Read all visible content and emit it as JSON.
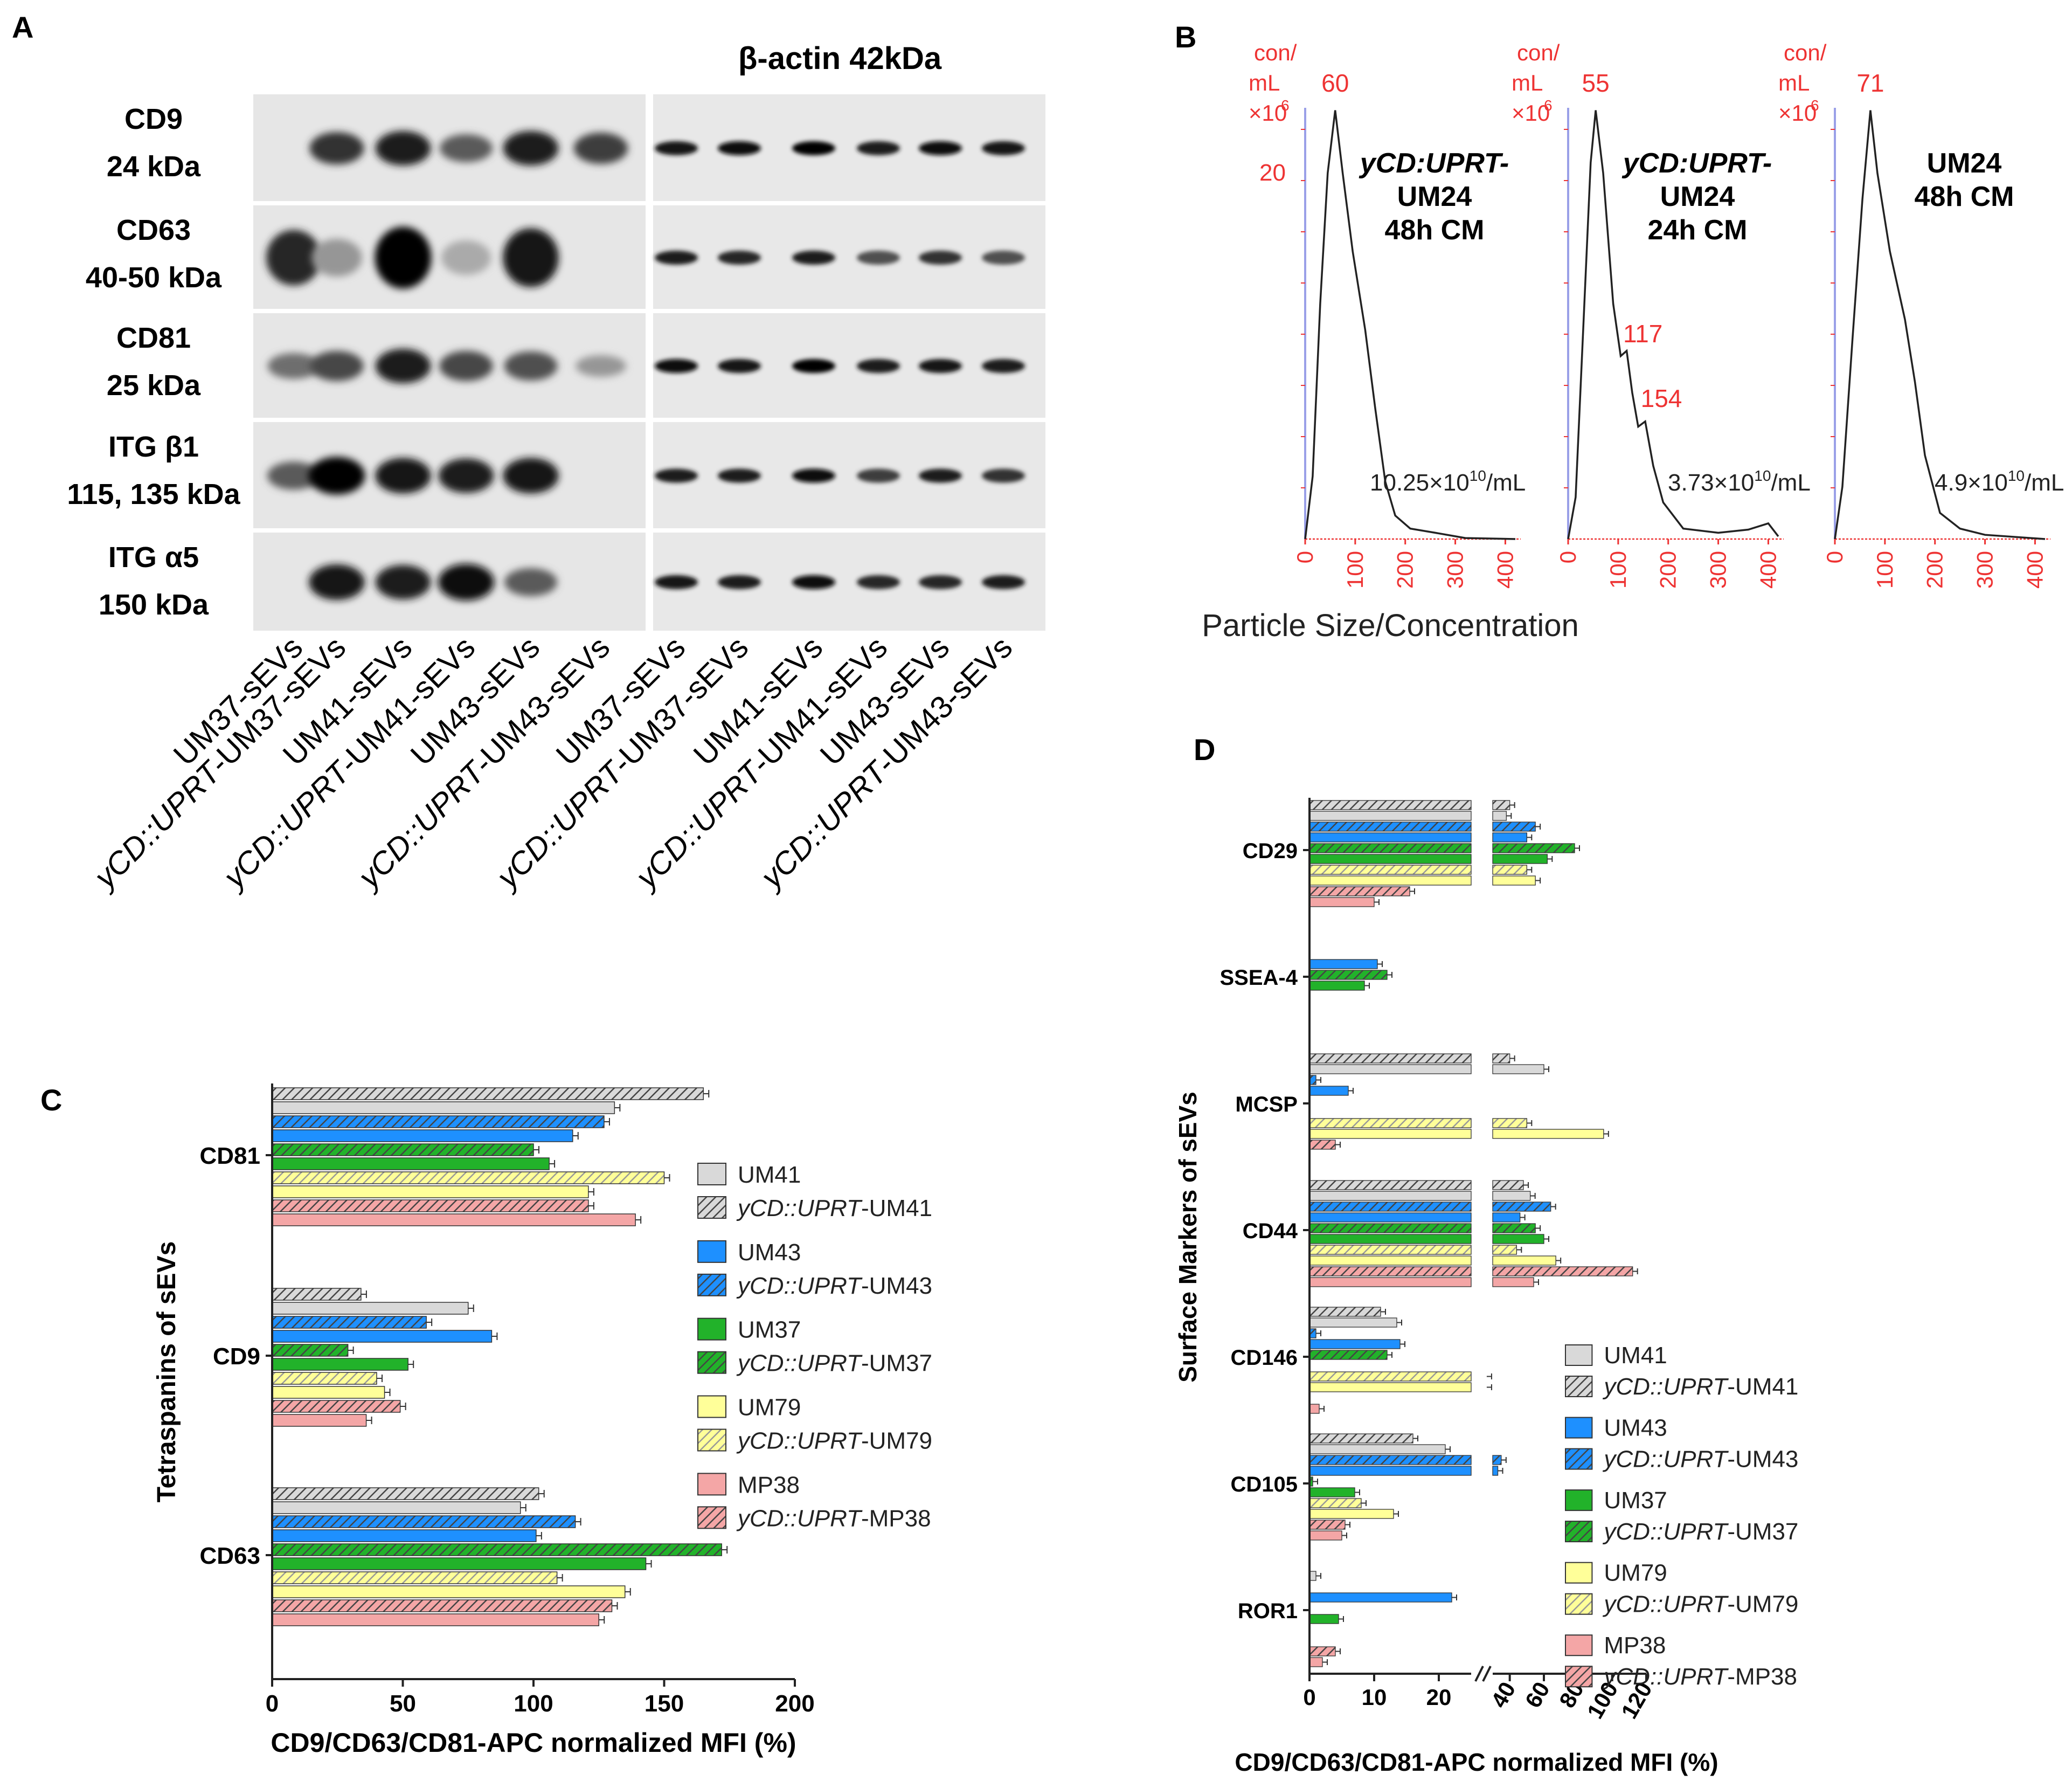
{
  "panel_a": {
    "letter": "A",
    "actin_label": "β-actin  42kDa",
    "markers": [
      {
        "name": "CD9",
        "size": "24 kDa"
      },
      {
        "name": "CD63",
        "size": "40-50 kDa"
      },
      {
        "name": "CD81",
        "size": "25 kDa"
      },
      {
        "name": "ITG β1",
        "size": "115, 135 kDa"
      },
      {
        "name": "ITG α5",
        "size": "150 kDa"
      }
    ],
    "lanes": [
      {
        "prefix": "",
        "name": "UM37-sEVs"
      },
      {
        "prefix": "yCD::UPRT",
        "name": "-UM37-sEVs"
      },
      {
        "prefix": "",
        "name": "UM41-sEVs"
      },
      {
        "prefix": "yCD::UPRT",
        "name": "-UM41-sEVs"
      },
      {
        "prefix": "",
        "name": "UM43-sEVs"
      },
      {
        "prefix": "yCD::UPRT",
        "name": "-UM43-sEVs"
      },
      {
        "prefix": "",
        "name": "UM37-sEVs"
      },
      {
        "prefix": "yCD::UPRT",
        "name": "-UM37-sEVs"
      },
      {
        "prefix": "",
        "name": "UM41-sEVs"
      },
      {
        "prefix": "yCD::UPRT",
        "name": "-UM41-sEVs"
      },
      {
        "prefix": "",
        "name": "UM43-sEVs"
      },
      {
        "prefix": "yCD::UPRT",
        "name": "-UM43-sEVs"
      }
    ],
    "band_intensity": [
      [
        0,
        0.75,
        0.85,
        0.55,
        0.85,
        0.7,
        0.9,
        0.95,
        1.0,
        0.85,
        0.95,
        0.9
      ],
      [
        0.8,
        0.25,
        1.0,
        0.15,
        0.9,
        0,
        0.85,
        0.8,
        0.85,
        0.6,
        0.75,
        0.6
      ],
      [
        0.45,
        0.65,
        0.85,
        0.65,
        0.6,
        0.25,
        0.95,
        0.9,
        1.0,
        0.85,
        0.9,
        0.85
      ],
      [
        0.55,
        1.0,
        0.9,
        0.85,
        0.9,
        0,
        0.85,
        0.85,
        0.95,
        0.7,
        0.85,
        0.75
      ],
      [
        0,
        0.9,
        0.85,
        0.95,
        0.55,
        0,
        0.9,
        0.85,
        0.95,
        0.8,
        0.8,
        0.85
      ]
    ]
  },
  "panel_b": {
    "letter": "B",
    "xlabel": "Particle Size/Concentration",
    "y_unit": [
      "con/",
      "mL",
      "×10"
    ],
    "y_unit_exp": "6",
    "plots": [
      {
        "title_italic": "yCD:UPRT-",
        "title_lines": [
          "UM24",
          "48h CM"
        ],
        "peak": "60",
        "ytick": "20",
        "concentration": "10.25×10",
        "conc_exp": "10",
        "conc_unit": "/mL",
        "extra_peaks": []
      },
      {
        "title_italic": "yCD:UPRT-",
        "title_lines": [
          "UM24",
          "24h CM"
        ],
        "peak": "55",
        "ytick": "",
        "concentration": "3.73×10",
        "conc_exp": "10",
        "conc_unit": "/mL",
        "extra_peaks": [
          "117",
          "154"
        ]
      },
      {
        "title_italic": "",
        "title_lines": [
          "UM24",
          "48h CM"
        ],
        "peak": "71",
        "ytick": "",
        "concentration": "4.9×10",
        "conc_exp": "10",
        "conc_unit": "/mL",
        "extra_peaks": []
      }
    ],
    "xticks": [
      "0",
      "100",
      "200",
      "300",
      "400"
    ]
  },
  "legend": [
    {
      "prefix": "",
      "name": "UM41",
      "color": "#d9d9d9",
      "hatched": false
    },
    {
      "prefix": "yCD::UPRT",
      "name": "-UM41",
      "color": "#d9d9d9",
      "hatched": true
    },
    {
      "prefix": "",
      "name": "UM43",
      "color": "#1e90ff",
      "hatched": false
    },
    {
      "prefix": "yCD::UPRT",
      "name": "-UM43",
      "color": "#1e90ff",
      "hatched": true
    },
    {
      "prefix": "",
      "name": "UM37",
      "color": "#22b22a",
      "hatched": false
    },
    {
      "prefix": "yCD::UPRT",
      "name": "-UM37",
      "color": "#22b22a",
      "hatched": true
    },
    {
      "prefix": "",
      "name": "UM79",
      "color": "#ffff99",
      "hatched": false
    },
    {
      "prefix": "yCD::UPRT",
      "name": "-UM79",
      "color": "#ffff99",
      "hatched": true
    },
    {
      "prefix": "",
      "name": "MP38",
      "color": "#f4a6a6",
      "hatched": false
    },
    {
      "prefix": "yCD::UPRT",
      "name": "-MP38",
      "color": "#f4a6a6",
      "hatched": true
    }
  ],
  "chart_data": [
    {
      "panel": "C",
      "type": "bar",
      "orientation": "horizontal",
      "ylabel": "Tetraspanins of sEVs",
      "xlabel": "CD9/CD63/CD81-APC normalized MFI (%)",
      "xlim": [
        0,
        200
      ],
      "xticks": [
        "0",
        "50",
        "100",
        "150",
        "200"
      ],
      "series_order": [
        "yCD::UPRT-UM41",
        "UM41",
        "yCD::UPRT-UM43",
        "UM43",
        "yCD::UPRT-UM37",
        "UM37",
        "yCD::UPRT-UM79",
        "UM79",
        "yCD::UPRT-MP38",
        "MP38"
      ],
      "groups": [
        {
          "category": "CD81",
          "values": [
            165,
            131,
            127,
            115,
            100,
            106,
            150,
            121,
            121,
            139
          ]
        },
        {
          "category": "CD9",
          "values": [
            34,
            75,
            59,
            84,
            29,
            52,
            40,
            43,
            49,
            36
          ]
        },
        {
          "category": "CD63",
          "values": [
            102,
            95,
            116,
            101,
            172,
            143,
            109,
            135,
            130,
            125
          ]
        }
      ]
    },
    {
      "panel": "D",
      "type": "bar",
      "orientation": "horizontal",
      "ylabel": "Surface Markers of sEVs",
      "xlabel": "CD9/CD63/CD81-APC normalized MFI (%)",
      "axis_break": [
        25,
        30
      ],
      "xticks_left": [
        "0",
        "10",
        "20"
      ],
      "xticks_right": [
        "40",
        "60",
        "80",
        "100",
        "120"
      ],
      "series_order": [
        "yCD::UPRT-UM41",
        "UM41",
        "yCD::UPRT-UM43",
        "UM43",
        "yCD::UPRT-UM37",
        "UM37",
        "yCD::UPRT-UM79",
        "UM79",
        "yCD::UPRT-MP38",
        "MP38"
      ],
      "groups": [
        {
          "category": "CD29",
          "values": [
            40,
            38,
            55,
            50,
            78,
            62,
            50,
            55,
            15.5,
            10
          ]
        },
        {
          "category": "SSEA-4",
          "values": [
            0,
            0,
            0,
            10.5,
            12,
            8.5,
            0,
            0,
            0,
            0
          ]
        },
        {
          "category": "MCSP",
          "values": [
            40,
            60,
            1,
            6,
            0,
            0,
            50,
            95,
            4,
            0
          ]
        },
        {
          "category": "CD44",
          "values": [
            48,
            52,
            64,
            46,
            55,
            60,
            44,
            67,
            112,
            54
          ]
        },
        {
          "category": "CD146",
          "values": [
            11,
            13.5,
            1,
            14,
            12,
            0,
            26.5,
            26.5,
            0,
            1.5
          ]
        },
        {
          "category": "CD105",
          "values": [
            16,
            21,
            35,
            33,
            0.5,
            7,
            8,
            13,
            5.5,
            5
          ]
        },
        {
          "category": "ROR1",
          "values": [
            0,
            1,
            0,
            22,
            0,
            4.5,
            0,
            0,
            4,
            2
          ]
        }
      ]
    }
  ]
}
